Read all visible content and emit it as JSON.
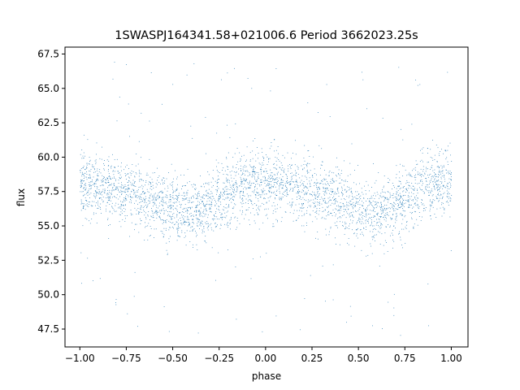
{
  "chart_data": {
    "type": "scatter",
    "title": "1SWASPJ164341.58+021006.6 Period 3662023.25s",
    "xlabel": "phase",
    "ylabel": "flux",
    "xlim": [
      -1.08,
      1.09
    ],
    "ylim": [
      46.2,
      68.0
    ],
    "xticks": [
      -1.0,
      -0.75,
      -0.5,
      -0.25,
      0.0,
      0.25,
      0.5,
      0.75,
      1.0
    ],
    "xtick_labels": [
      "−1.00",
      "−0.75",
      "−0.50",
      "−0.25",
      "0.00",
      "0.25",
      "0.50",
      "0.75",
      "1.00"
    ],
    "yticks": [
      47.5,
      50.0,
      52.5,
      55.0,
      57.5,
      60.0,
      62.5,
      65.0,
      67.5
    ],
    "ytick_labels": [
      "47.5",
      "50.0",
      "52.5",
      "55.0",
      "57.5",
      "60.0",
      "62.5",
      "65.0",
      "67.5"
    ],
    "grid": false,
    "series": [
      {
        "color": "#1f77b4",
        "marker_size": 0.8,
        "profile_phase": [
          0.0,
          0.1,
          0.2,
          0.3,
          0.4,
          0.5,
          0.6,
          0.7,
          0.8,
          0.9,
          1.0
        ],
        "profile_flux": [
          58.2,
          57.8,
          57.5,
          57.4,
          56.8,
          56.2,
          55.8,
          56.5,
          57.4,
          58.0,
          58.2
        ],
        "spread": 1.2,
        "flux_min": 47.0,
        "flux_max": 67.0,
        "note": "phase-folded light curve repeated from -1 to 1; thousands of points"
      }
    ]
  }
}
